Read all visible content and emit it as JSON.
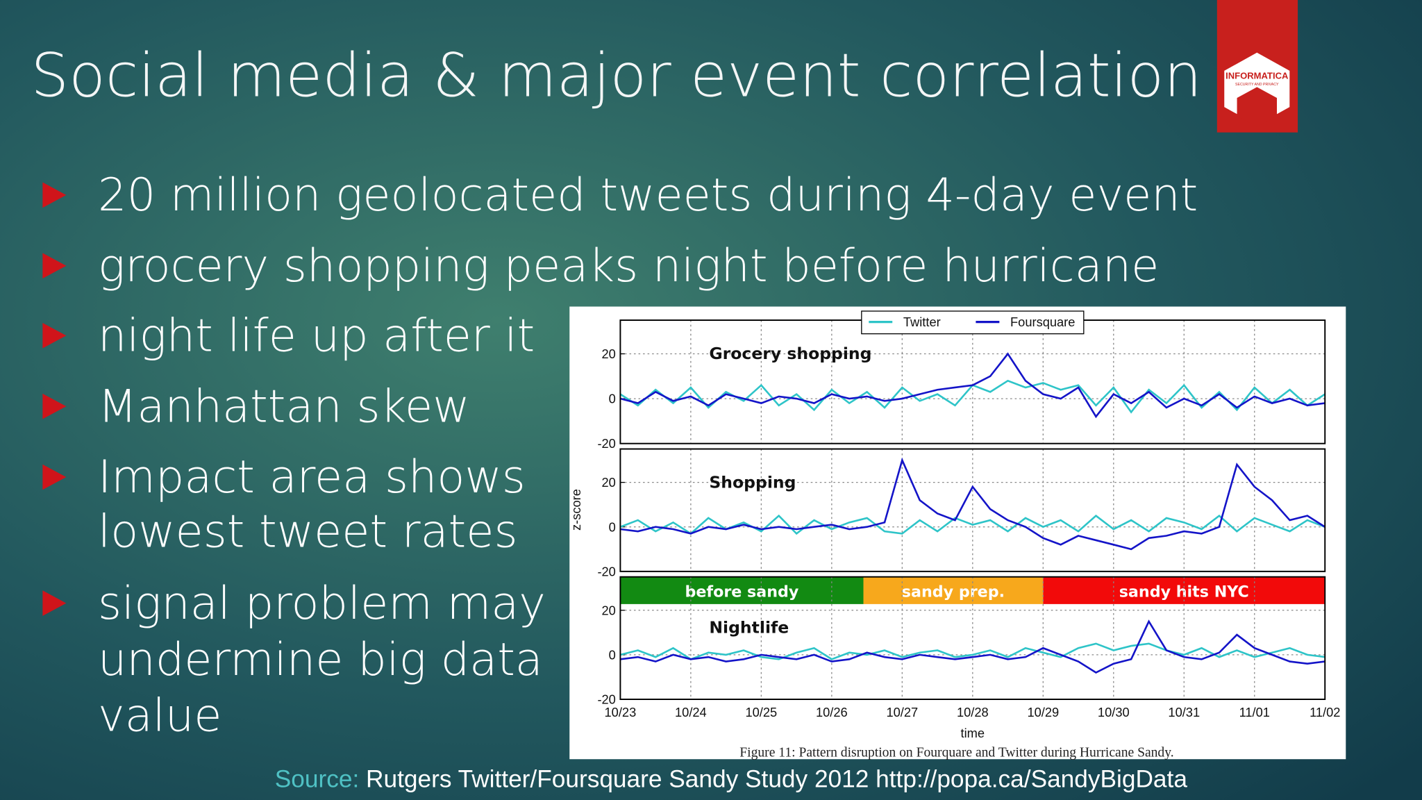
{
  "header": {
    "title": "Social media & major event correlation"
  },
  "logo": {
    "text": "INFORMATICA",
    "subtext": "SECURITY AND PRIVACY"
  },
  "bullets": [
    [
      "20 million geolocated tweets during 4-day event"
    ],
    [
      "grocery shopping peaks night before hurricane"
    ],
    [
      "night life up after it"
    ],
    [
      "Manhattan skew"
    ],
    [
      "Impact area shows",
      "lowest tweet rates"
    ],
    [
      "signal problem may",
      "undermine big data",
      "value"
    ]
  ],
  "figure": {
    "ylabel": "z-score",
    "xlabel": "time",
    "caption": "Figure 11: Pattern disruption on Fourquare and Twitter during Hurricane Sandy."
  },
  "chart_data": [
    {
      "type": "line",
      "title": "Grocery shopping",
      "x": [
        0,
        0.25,
        0.5,
        0.75,
        1,
        1.25,
        1.5,
        1.75,
        2,
        2.25,
        2.5,
        2.75,
        3,
        3.25,
        3.5,
        3.75,
        4,
        4.25,
        4.5,
        4.75,
        5,
        5.25,
        5.5,
        5.75,
        6,
        6.25,
        6.5,
        6.75,
        7,
        7.25,
        7.5,
        7.75,
        8,
        8.25,
        8.5,
        8.75,
        9,
        9.25,
        9.5,
        9.75,
        10
      ],
      "series": [
        {
          "name": "Twitter",
          "color": "#2ec4c8",
          "values": [
            2,
            -3,
            4,
            -2,
            5,
            -4,
            3,
            -1,
            6,
            -3,
            2,
            -5,
            4,
            -2,
            3,
            -4,
            5,
            -1,
            2,
            -3,
            6,
            3,
            8,
            5,
            7,
            4,
            6,
            -3,
            5,
            -6,
            4,
            -2,
            6,
            -4,
            3,
            -5,
            5,
            -2,
            4,
            -3,
            2
          ]
        },
        {
          "name": "Foursquare",
          "color": "#1414c8",
          "values": [
            0,
            -2,
            3,
            -1,
            1,
            -3,
            2,
            0,
            -2,
            1,
            0,
            -2,
            2,
            0,
            1,
            -1,
            0,
            2,
            4,
            5,
            6,
            10,
            20,
            8,
            2,
            0,
            5,
            -8,
            2,
            -2,
            3,
            -4,
            0,
            -3,
            2,
            -4,
            1,
            -2,
            0,
            -3,
            -2
          ]
        }
      ],
      "ylim": [
        -20,
        35
      ],
      "yticks": [
        -20,
        0,
        20
      ],
      "grid": true
    },
    {
      "type": "line",
      "title": "Shopping",
      "x": [
        0,
        0.25,
        0.5,
        0.75,
        1,
        1.25,
        1.5,
        1.75,
        2,
        2.25,
        2.5,
        2.75,
        3,
        3.25,
        3.5,
        3.75,
        4,
        4.25,
        4.5,
        4.75,
        5,
        5.25,
        5.5,
        5.75,
        6,
        6.25,
        6.5,
        6.75,
        7,
        7.25,
        7.5,
        7.75,
        8,
        8.25,
        8.5,
        8.75,
        9,
        9.25,
        9.5,
        9.75,
        10
      ],
      "series": [
        {
          "name": "Twitter",
          "color": "#2ec4c8",
          "values": [
            0,
            3,
            -2,
            2,
            -3,
            4,
            -1,
            2,
            -2,
            5,
            -3,
            3,
            -1,
            2,
            4,
            -2,
            -3,
            3,
            -2,
            4,
            1,
            3,
            -2,
            4,
            0,
            3,
            -2,
            5,
            -1,
            3,
            -2,
            4,
            2,
            -1,
            5,
            -2,
            4,
            1,
            -2,
            3,
            0
          ]
        },
        {
          "name": "Foursquare",
          "color": "#1414c8",
          "values": [
            -1,
            -2,
            0,
            -1,
            -3,
            0,
            -1,
            1,
            -1,
            0,
            -1,
            0,
            1,
            -1,
            0,
            2,
            30,
            12,
            6,
            3,
            18,
            8,
            3,
            0,
            -5,
            -8,
            -4,
            -6,
            -8,
            -10,
            -5,
            -4,
            -2,
            -3,
            0,
            28,
            18,
            12,
            3,
            5,
            0
          ]
        }
      ],
      "ylim": [
        -20,
        35
      ],
      "yticks": [
        -20,
        0,
        20
      ],
      "grid": true
    },
    {
      "type": "line",
      "title": "Nightlife",
      "x": [
        0,
        0.25,
        0.5,
        0.75,
        1,
        1.25,
        1.5,
        1.75,
        2,
        2.25,
        2.5,
        2.75,
        3,
        3.25,
        3.5,
        3.75,
        4,
        4.25,
        4.5,
        4.75,
        5,
        5.25,
        5.5,
        5.75,
        6,
        6.25,
        6.5,
        6.75,
        7,
        7.25,
        7.5,
        7.75,
        8,
        8.25,
        8.5,
        8.75,
        9,
        9.25,
        9.5,
        9.75,
        10
      ],
      "series": [
        {
          "name": "Twitter",
          "color": "#2ec4c8",
          "values": [
            0,
            2,
            -1,
            3,
            -2,
            1,
            0,
            2,
            -1,
            -2,
            1,
            3,
            -2,
            1,
            0,
            2,
            -1,
            1,
            2,
            -1,
            0,
            2,
            -1,
            3,
            1,
            -1,
            3,
            5,
            2,
            4,
            5,
            2,
            0,
            3,
            -1,
            2,
            -1,
            1,
            3,
            0,
            -1
          ]
        },
        {
          "name": "Foursquare",
          "color": "#1414c8",
          "values": [
            -2,
            -1,
            -3,
            0,
            -2,
            -1,
            -3,
            -2,
            0,
            -1,
            -2,
            0,
            -3,
            -2,
            1,
            -1,
            -2,
            0,
            -1,
            -2,
            -1,
            0,
            -2,
            -1,
            3,
            0,
            -3,
            -8,
            -4,
            -2,
            15,
            2,
            -1,
            -2,
            1,
            9,
            3,
            0,
            -3,
            -4,
            -3
          ]
        }
      ],
      "ylim": [
        -20,
        35
      ],
      "yticks": [
        -20,
        0,
        20
      ],
      "grid": true,
      "periods": [
        {
          "label": "before sandy",
          "start": 0,
          "end": 3.45,
          "color": "#128a12"
        },
        {
          "label": "sandy prep.",
          "start": 3.45,
          "end": 6,
          "color": "#f7a81c"
        },
        {
          "label": "sandy hits NYC",
          "start": 6,
          "end": 10,
          "color": "#f20a0a"
        }
      ],
      "xlim": [
        0,
        10
      ],
      "xticks": [
        {
          "value": 0,
          "label": "10/23"
        },
        {
          "value": 1,
          "label": "10/24"
        },
        {
          "value": 2,
          "label": "10/25"
        },
        {
          "value": 3,
          "label": "10/26"
        },
        {
          "value": 4,
          "label": "10/27"
        },
        {
          "value": 5,
          "label": "10/28"
        },
        {
          "value": 6,
          "label": "10/29"
        },
        {
          "value": 7,
          "label": "10/30"
        },
        {
          "value": 8,
          "label": "10/31"
        },
        {
          "value": 9,
          "label": "11/01"
        },
        {
          "value": 10,
          "label": "11/02"
        }
      ]
    }
  ],
  "source": {
    "label": "Source:",
    "text": "Rutgers Twitter/Foursquare Sandy Study 2012 http://popa.ca/SandyBigData"
  }
}
